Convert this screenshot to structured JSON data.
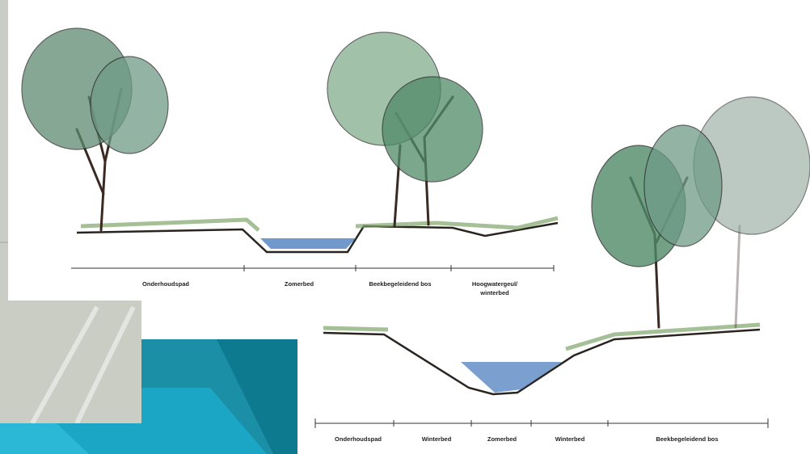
{
  "section_top": {
    "labels": [
      "Onderhoudspad",
      "Zomerbed",
      "Beekbegeleidend bos",
      "Hoogwatergeul/",
      "winterbed"
    ]
  },
  "section_bottom": {
    "labels": [
      "Onderhoudspad",
      "Winterbed",
      "Zomerbed",
      "Winterbed",
      "Beekbegeleidend bos"
    ]
  }
}
